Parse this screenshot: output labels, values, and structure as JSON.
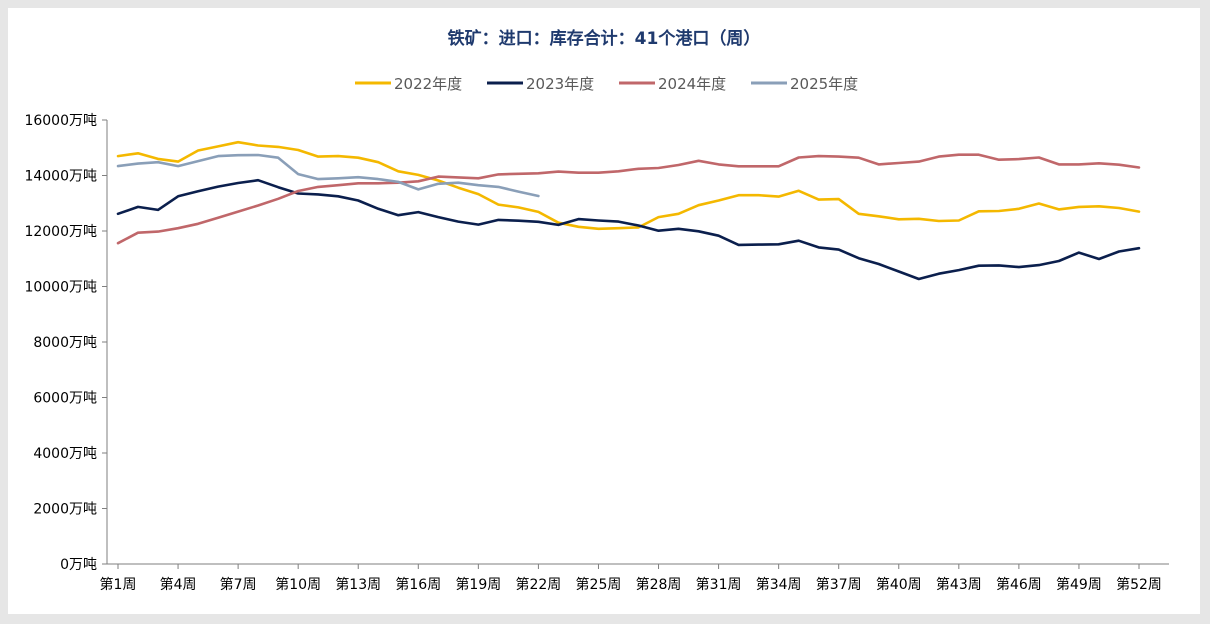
{
  "chart_data": {
    "type": "line",
    "title": "铁矿：进口：库存合计：41个港口（周）",
    "xlabel": "",
    "ylabel": "",
    "ylim": [
      0,
      16000
    ],
    "y_ticks": [
      "0万吨",
      "2000万吨",
      "4000万吨",
      "6000万吨",
      "8000万吨",
      "10000万吨",
      "12000万吨",
      "14000万吨",
      "16000万吨"
    ],
    "y_tick_values": [
      0,
      2000,
      4000,
      6000,
      8000,
      10000,
      12000,
      14000,
      16000
    ],
    "x_tick_labels": [
      "第1周",
      "第4周",
      "第7周",
      "第10周",
      "第13周",
      "第16周",
      "第19周",
      "第22周",
      "第25周",
      "第28周",
      "第31周",
      "第34周",
      "第37周",
      "第40周",
      "第43周",
      "第46周",
      "第49周",
      "第52周"
    ],
    "x_tick_weeks": [
      1,
      4,
      7,
      10,
      13,
      16,
      19,
      22,
      25,
      28,
      31,
      34,
      37,
      40,
      43,
      46,
      49,
      52
    ],
    "weeks": [
      1,
      2,
      3,
      4,
      5,
      6,
      7,
      8,
      9,
      10,
      11,
      12,
      13,
      14,
      15,
      16,
      17,
      18,
      19,
      20,
      21,
      22,
      23,
      24,
      25,
      26,
      27,
      28,
      29,
      30,
      31,
      32,
      33,
      34,
      35,
      36,
      37,
      38,
      39,
      40,
      41,
      42,
      43,
      44,
      45,
      46,
      47,
      48,
      49,
      50,
      51,
      52
    ],
    "legend_position": "top-center",
    "series": [
      {
        "name": "2022年度",
        "color": "#f4b800",
        "values": [
          14700,
          14800,
          14600,
          14500,
          14900,
          15050,
          15200,
          15080,
          15030,
          14920,
          14680,
          14700,
          14640,
          14480,
          14150,
          14020,
          13820,
          13560,
          13330,
          12950,
          12850,
          12690,
          12300,
          12150,
          12080,
          12100,
          12130,
          12500,
          12620,
          12930,
          13100,
          13290,
          13290,
          13240,
          13450,
          13130,
          13150,
          12620,
          12530,
          12420,
          12440,
          12360,
          12380,
          12710,
          12720,
          12800,
          12990,
          12780,
          12870,
          12890,
          12830,
          12700
        ]
      },
      {
        "name": "2023年度",
        "color": "#0b1f4d",
        "values": [
          12620,
          12870,
          12760,
          13250,
          13430,
          13600,
          13730,
          13830,
          13580,
          13350,
          13320,
          13250,
          13100,
          12800,
          12570,
          12680,
          12500,
          12340,
          12230,
          12400,
          12370,
          12330,
          12220,
          12430,
          12380,
          12340,
          12200,
          12010,
          12080,
          11990,
          11830,
          11500,
          11510,
          11520,
          11650,
          11410,
          11330,
          11020,
          10810,
          10540,
          10270,
          10460,
          10590,
          10750,
          10760,
          10700,
          10770,
          10920,
          11220,
          10990,
          11260,
          11380
        ]
      },
      {
        "name": "2024年度",
        "color": "#c0676a",
        "values": [
          11560,
          11940,
          11980,
          12100,
          12260,
          12480,
          12700,
          12920,
          13160,
          13440,
          13590,
          13650,
          13720,
          13720,
          13740,
          13790,
          13960,
          13930,
          13900,
          14040,
          14060,
          14080,
          14140,
          14100,
          14100,
          14150,
          14240,
          14270,
          14380,
          14530,
          14400,
          14330,
          14330,
          14330,
          14650,
          14700,
          14680,
          14640,
          14400,
          14450,
          14500,
          14680,
          14750,
          14750,
          14570,
          14590,
          14650,
          14400,
          14400,
          14440,
          14390,
          14290
        ]
      },
      {
        "name": "2025年度",
        "color": "#8a9fb8",
        "values": [
          14340,
          14430,
          14480,
          14340,
          14520,
          14700,
          14730,
          14740,
          14640,
          14050,
          13870,
          13900,
          13940,
          13870,
          13770,
          13500,
          13700,
          13740,
          13650,
          13590,
          13420,
          13260
        ]
      }
    ]
  }
}
